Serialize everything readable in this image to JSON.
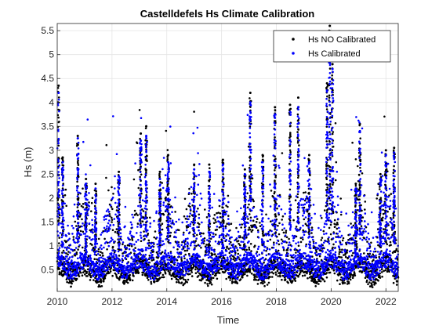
{
  "chart_data": {
    "type": "scatter",
    "title": "Castelldefels Hs Climate Calibration",
    "xlabel": "Time",
    "ylabel": "Hs (m)",
    "xlim": [
      2010.0,
      2022.45
    ],
    "ylim": [
      0.05,
      5.65
    ],
    "x_ticks": [
      2010,
      2012,
      2014,
      2016,
      2018,
      2020,
      2022
    ],
    "x_tick_labels": [
      "2010",
      "2012",
      "2014",
      "2016",
      "2018",
      "2020",
      "2022"
    ],
    "y_ticks": [
      0.5,
      1,
      1.5,
      2,
      2.5,
      3,
      3.5,
      4,
      4.5,
      5,
      5.5
    ],
    "y_tick_labels": [
      "0.5",
      "1",
      "1.5",
      "2",
      "2.5",
      "3",
      "3.5",
      "4",
      "4.5",
      "5",
      "5.5"
    ],
    "grid": true,
    "legend_position": "top-right",
    "series": [
      {
        "name": "Hs NO Calibrated",
        "color": "#000000",
        "peaks": {
          "x": [
            2010.05,
            2010.2,
            2010.75,
            2011.05,
            2011.4,
            2012.25,
            2013.05,
            2013.25,
            2013.75,
            2014.05,
            2015.0,
            2015.55,
            2016.05,
            2016.85,
            2017.05,
            2017.5,
            2017.95,
            2018.5,
            2018.8,
            2019.2,
            2019.85,
            2019.95,
            2020.05,
            2020.9,
            2021.05,
            2021.8,
            2022.0,
            2022.3
          ],
          "y": [
            4.35,
            2.85,
            3.3,
            2.4,
            2.3,
            2.55,
            3.35,
            3.5,
            2.55,
            2.9,
            2.7,
            2.7,
            2.8,
            2.6,
            4.2,
            2.9,
            3.9,
            3.95,
            4.1,
            2.9,
            4.4,
            5.6,
            4.8,
            2.3,
            3.55,
            2.5,
            3.0,
            3.05
          ]
        },
        "baseline": 0.2
      },
      {
        "name": "Hs Calibrated",
        "color": "#0000ff",
        "peaks": {
          "x": [
            2010.05,
            2010.2,
            2010.75,
            2011.05,
            2011.4,
            2012.25,
            2013.05,
            2013.25,
            2013.75,
            2014.05,
            2015.0,
            2015.55,
            2016.05,
            2016.85,
            2017.05,
            2017.5,
            2017.95,
            2018.5,
            2018.8,
            2019.2,
            2019.85,
            2019.95,
            2020.05,
            2020.9,
            2021.05,
            2021.8,
            2022.0,
            2022.3
          ],
          "y": [
            4.2,
            2.75,
            3.25,
            2.3,
            2.2,
            2.45,
            3.2,
            3.3,
            2.4,
            2.75,
            2.6,
            2.55,
            2.7,
            2.5,
            4.0,
            2.75,
            3.75,
            3.8,
            3.9,
            2.75,
            4.25,
            4.9,
            4.7,
            2.2,
            3.4,
            2.4,
            2.9,
            2.95
          ]
        },
        "baseline": 0.3
      }
    ]
  }
}
